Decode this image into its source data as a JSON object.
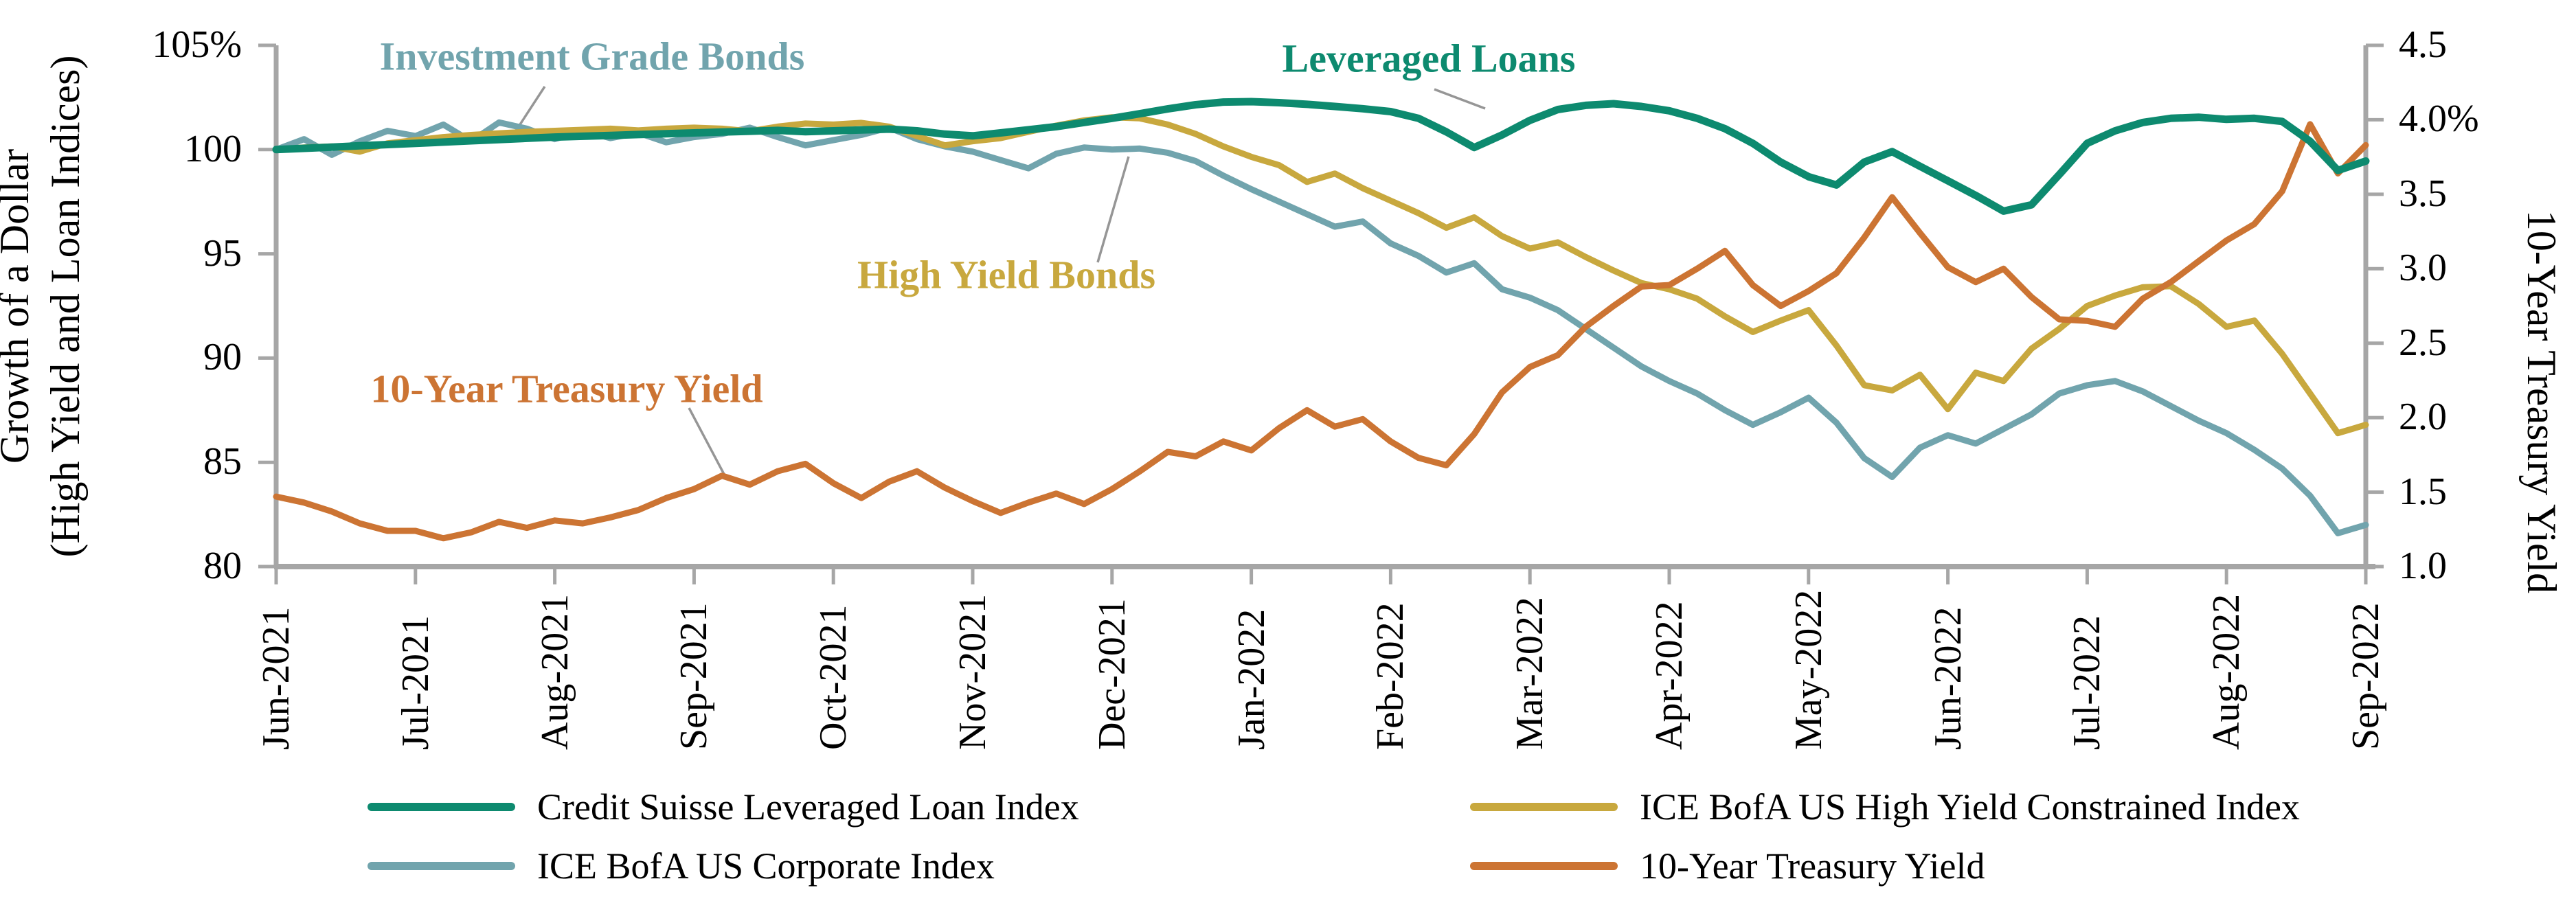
{
  "chart_data": {
    "type": "line",
    "title": "",
    "grid": "off",
    "legend_position": "bottom-two-columns",
    "x_tick_labels": [
      "Jun-2021",
      "Jul-2021",
      "Aug-2021",
      "Sep-2021",
      "Oct-2021",
      "Nov-2021",
      "Dec-2021",
      "Jan-2022",
      "Feb-2022",
      "Mar-2022",
      "Apr-2022",
      "May-2022",
      "Jun-2022",
      "Jul-2022",
      "Aug-2022",
      "Sep-2022"
    ],
    "left_axis": {
      "title_line1": "Growth of a Dollar",
      "title_line2": "(High Yield and Loan Indices)",
      "tick_labels": [
        "105%",
        "100",
        "95",
        "90",
        "85",
        "80"
      ],
      "tick_values": [
        105,
        100,
        95,
        90,
        85,
        80
      ],
      "range": [
        80,
        105
      ]
    },
    "right_axis": {
      "title": "10-Year Treasury Yield",
      "tick_labels": [
        "4.5",
        "4.0%",
        "3.5",
        "3.0",
        "2.5",
        "2.0",
        "1.5",
        "1.0"
      ],
      "tick_values": [
        4.5,
        4.0,
        3.5,
        3.0,
        2.5,
        2.0,
        1.5,
        1.0
      ],
      "range": [
        1.0,
        4.5
      ]
    },
    "series": [
      {
        "name": "Credit Suisse Leveraged Loan Index",
        "color": "#0D8A6F",
        "axis": "left",
        "stroke_width": 11,
        "values": [
          100,
          100.06,
          100.12,
          100.18,
          100.24,
          100.3,
          100.36,
          100.42,
          100.48,
          100.54,
          100.6,
          100.64,
          100.68,
          100.72,
          100.76,
          100.8,
          100.84,
          100.88,
          100.92,
          100.86,
          100.9,
          100.94,
          100.98,
          100.9,
          100.74,
          100.66,
          100.8,
          100.95,
          101.1,
          101.3,
          101.5,
          101.72,
          101.95,
          102.15,
          102.28,
          102.3,
          102.25,
          102.17,
          102.07,
          101.96,
          101.82,
          101.5,
          100.85,
          100.1,
          100.7,
          101.4,
          101.92,
          102.12,
          102.2,
          102.07,
          101.86,
          101.5,
          101.0,
          100.3,
          99.4,
          98.7,
          98.3,
          99.4,
          99.9,
          99.2,
          98.5,
          97.8,
          97.05,
          97.35,
          98.8,
          100.3,
          100.9,
          101.3,
          101.5,
          101.55,
          101.45,
          101.5,
          101.35,
          100.4,
          99.0,
          99.45
        ]
      },
      {
        "name": "ICE BofA US High Yield Constrained Index",
        "color": "#C8A83E",
        "axis": "left",
        "stroke_width": 9,
        "values": [
          100,
          100.1,
          100.15,
          99.9,
          100.3,
          100.45,
          100.6,
          100.7,
          100.78,
          100.85,
          100.9,
          100.95,
          101.0,
          100.92,
          101.0,
          101.05,
          101.0,
          100.88,
          101.1,
          101.25,
          101.2,
          101.28,
          101.1,
          100.65,
          100.2,
          100.4,
          100.55,
          100.85,
          101.15,
          101.4,
          101.55,
          101.5,
          101.2,
          100.75,
          100.15,
          99.65,
          99.25,
          98.45,
          98.85,
          98.15,
          97.55,
          96.95,
          96.25,
          96.75,
          95.85,
          95.25,
          95.55,
          94.85,
          94.2,
          93.6,
          93.3,
          92.85,
          92.0,
          91.25,
          91.8,
          92.3,
          90.6,
          88.7,
          88.45,
          89.2,
          87.55,
          89.3,
          88.9,
          90.45,
          91.4,
          92.5,
          93.0,
          93.4,
          93.45,
          92.6,
          91.5,
          91.8,
          90.2,
          88.3,
          86.4,
          86.8
        ]
      },
      {
        "name": "ICE BofA US Corporate Index",
        "color": "#71A4AD",
        "axis": "left",
        "stroke_width": 9,
        "values": [
          100,
          100.5,
          99.75,
          100.4,
          100.9,
          100.65,
          101.2,
          100.4,
          101.3,
          101.0,
          100.5,
          100.9,
          100.55,
          100.8,
          100.35,
          100.6,
          100.75,
          101.05,
          100.6,
          100.2,
          100.45,
          100.7,
          101.05,
          100.5,
          100.15,
          99.9,
          99.5,
          99.1,
          99.8,
          100.1,
          100.0,
          100.05,
          99.85,
          99.45,
          98.75,
          98.1,
          97.5,
          96.9,
          96.3,
          96.55,
          95.5,
          94.9,
          94.1,
          94.55,
          93.3,
          92.9,
          92.3,
          91.4,
          90.5,
          89.6,
          88.9,
          88.3,
          87.5,
          86.8,
          87.4,
          88.1,
          86.9,
          85.2,
          84.3,
          85.7,
          86.3,
          85.9,
          86.6,
          87.3,
          88.3,
          88.7,
          88.9,
          88.4,
          87.7,
          87.0,
          86.4,
          85.6,
          84.7,
          83.4,
          81.6,
          82.0
        ]
      },
      {
        "name": "10-Year Treasury Yield",
        "color": "#CC7433",
        "axis": "right",
        "stroke_width": 9,
        "values": [
          1.47,
          1.43,
          1.37,
          1.29,
          1.24,
          1.24,
          1.19,
          1.23,
          1.3,
          1.26,
          1.31,
          1.29,
          1.33,
          1.38,
          1.46,
          1.52,
          1.61,
          1.55,
          1.64,
          1.69,
          1.56,
          1.46,
          1.57,
          1.64,
          1.53,
          1.44,
          1.36,
          1.43,
          1.49,
          1.42,
          1.52,
          1.64,
          1.77,
          1.74,
          1.84,
          1.78,
          1.93,
          2.05,
          1.94,
          1.99,
          1.84,
          1.73,
          1.68,
          1.89,
          2.17,
          2.34,
          2.42,
          2.61,
          2.75,
          2.88,
          2.89,
          3.0,
          3.12,
          2.89,
          2.75,
          2.85,
          2.97,
          3.21,
          3.48,
          3.24,
          3.01,
          2.91,
          3.0,
          2.81,
          2.66,
          2.65,
          2.61,
          2.8,
          2.91,
          3.05,
          3.19,
          3.3,
          3.52,
          3.97,
          3.64,
          3.83
        ]
      }
    ],
    "annotations": [
      {
        "text": "Investment Grade Bonds",
        "color": "#71A4AD",
        "cx": 862,
        "cy": 82,
        "leader": [
          793,
          126,
          750,
          192
        ]
      },
      {
        "text": "Leveraged Loans",
        "color": "#0D8A6F",
        "cx": 2080,
        "cy": 85,
        "leader": [
          2088,
          130,
          2162,
          158
        ]
      },
      {
        "text": "High Yield Bonds",
        "color": "#C8A83E",
        "cx": 1465,
        "cy": 400,
        "leader": [
          1598,
          382,
          1643,
          228
        ]
      },
      {
        "text": "10-Year Treasury Yield",
        "color": "#CC7433",
        "cx": 825,
        "cy": 566,
        "leader": [
          1003,
          594,
          1058,
          698
        ]
      }
    ],
    "styles": {
      "axis_color": "#A6A6A6",
      "leader_color": "#969696",
      "text_color": "#000000"
    }
  },
  "legend": {
    "col1_row1": "Credit Suisse Leveraged Loan Index",
    "col1_row2": "ICE BofA US Corporate Index",
    "col2_row1": "ICE BofA US High Yield Constrained Index",
    "col2_row2": "10-Year Treasury Yield"
  }
}
